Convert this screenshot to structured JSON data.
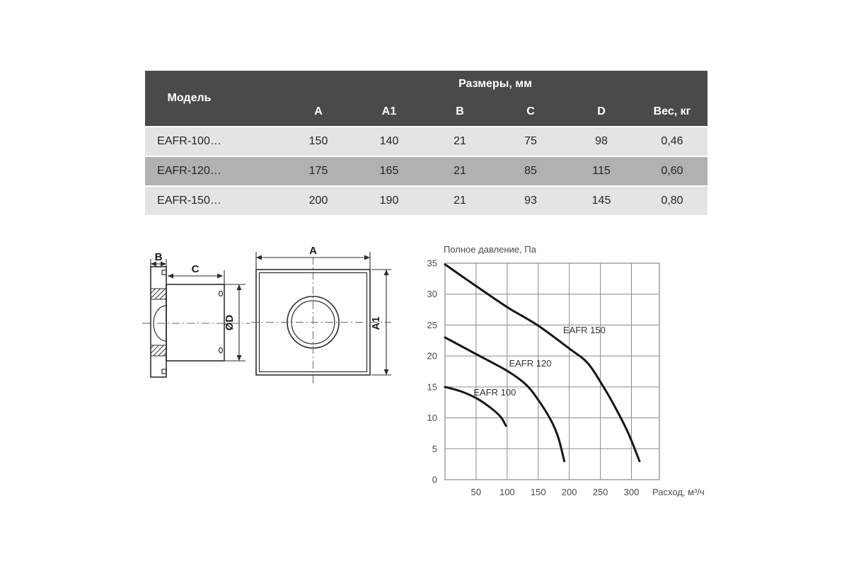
{
  "table": {
    "header": {
      "model": "Модель",
      "dimensions_group": "Размеры, мм",
      "columns": [
        "A",
        "A1",
        "B",
        "C",
        "D"
      ],
      "weight": "Вес, кг"
    },
    "rows": [
      {
        "model": "EAFR-100…",
        "A": "150",
        "A1": "140",
        "B": "21",
        "C": "75",
        "D": "98",
        "weight": "0,46"
      },
      {
        "model": "EAFR-120…",
        "A": "175",
        "A1": "165",
        "B": "21",
        "C": "85",
        "D": "115",
        "weight": "0,60"
      },
      {
        "model": "EAFR-150…",
        "A": "200",
        "A1": "190",
        "B": "21",
        "C": "93",
        "D": "145",
        "weight": "0,80"
      }
    ],
    "colors": {
      "header_bg": "#4a4a4c",
      "row_light": "#e4e4e6",
      "row_mid": "#b1b1b3",
      "header_text": "#ffffff",
      "cell_text": "#242424"
    }
  },
  "drawing": {
    "labels": {
      "B": "B",
      "C": "C",
      "D": "ØD",
      "A": "A",
      "A1": "A1"
    }
  },
  "chart_data": {
    "type": "line",
    "title": "Полное давление, Па",
    "xlabel": "Расход, м³/ч",
    "ylabel": "Полное давление, Па",
    "xlim": [
      0,
      345
    ],
    "ylim": [
      0,
      35
    ],
    "x_ticks": [
      50,
      100,
      150,
      200,
      250,
      300
    ],
    "y_ticks": [
      0,
      5,
      10,
      15,
      20,
      25,
      30,
      35
    ],
    "grid": true,
    "legend_position": "inline",
    "line_color": "#161616",
    "grid_color": "#8a8a8a",
    "series": [
      {
        "name": "EAFR 150",
        "points": [
          [
            0,
            34.8
          ],
          [
            50,
            31.3
          ],
          [
            100,
            27.9
          ],
          [
            150,
            24.9
          ],
          [
            200,
            21.2
          ],
          [
            230,
            18.8
          ],
          [
            255,
            15.0
          ],
          [
            275,
            11.5
          ],
          [
            295,
            7.5
          ],
          [
            313,
            3.0
          ]
        ],
        "label_pos": [
          190,
          23.7
        ]
      },
      {
        "name": "EAFR 120",
        "points": [
          [
            0,
            23.0
          ],
          [
            50,
            20.3
          ],
          [
            100,
            17.6
          ],
          [
            130,
            15.4
          ],
          [
            150,
            12.9
          ],
          [
            170,
            9.7
          ],
          [
            182,
            6.9
          ],
          [
            192,
            3.0
          ]
        ],
        "label_pos": [
          103,
          18.3
        ]
      },
      {
        "name": "EAFR 100",
        "points": [
          [
            0,
            15.0
          ],
          [
            25,
            14.3
          ],
          [
            50,
            13.2
          ],
          [
            75,
            11.5
          ],
          [
            90,
            10.1
          ],
          [
            98,
            8.7
          ]
        ],
        "label_pos": [
          46,
          13.6
        ]
      }
    ]
  }
}
